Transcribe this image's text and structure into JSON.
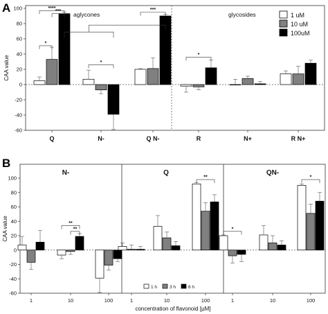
{
  "chart_data": [
    {
      "panel": "A",
      "type": "bar",
      "ylabel": "CAA value",
      "ylim": [
        -60,
        100
      ],
      "yticks": [
        100,
        80,
        60,
        40,
        20,
        0,
        -20,
        -40,
        -60
      ],
      "section_labels": [
        "aglycones",
        "glycosides"
      ],
      "categories": [
        "Q",
        "N-",
        "Q N-",
        "R",
        "N+",
        "R N+"
      ],
      "series": [
        {
          "name": "1 uM",
          "color": "#ffffff",
          "values": [
            5,
            7,
            20,
            -2,
            0,
            14
          ],
          "errors": [
            5,
            12,
            1,
            8,
            7,
            4
          ]
        },
        {
          "name": "10 uM",
          "color": "#808080",
          "values": [
            33,
            -7,
            21,
            -3,
            8,
            14
          ],
          "errors": [
            16,
            5,
            14,
            4,
            3,
            10
          ]
        },
        {
          "name": "100uM",
          "color": "#000000",
          "values": [
            93,
            -39,
            90,
            22,
            1,
            28
          ],
          "errors": [
            2,
            20,
            2,
            10,
            3,
            4
          ]
        }
      ],
      "legend_position": "top-right",
      "significance": [
        {
          "label": "****",
          "cat_a": 0,
          "cat_b": 0,
          "s1": 0,
          "s2": 2,
          "level": 97
        },
        {
          "label": "***",
          "cat_a": 0,
          "cat_b": 0,
          "s1": 1,
          "s2": 2,
          "level": 93
        },
        {
          "label": "*",
          "cat_a": 0,
          "cat_b": 0,
          "s1": 0,
          "s2": 1,
          "level": 51
        },
        {
          "label": "*",
          "cat_a": 1,
          "cat_b": 1,
          "s1": 0,
          "s2": 2,
          "level": 26
        },
        {
          "label": "***",
          "cat_a": 2,
          "cat_b": 2,
          "s1": 0,
          "s2": 2,
          "level": 95
        },
        {
          "label": "*",
          "cat_a": 3,
          "cat_b": 3,
          "s1": 0,
          "s2": 2,
          "level": 36
        }
      ],
      "bracket_Q_Nminus_to_QNminus": {
        "level": 78
      }
    },
    {
      "panel": "B",
      "type": "bar",
      "ylabel": "CAA value",
      "xlabel": "concentration of flavonoid [µM]",
      "ylim": [
        -60,
        100
      ],
      "yticks": [
        100,
        80,
        60,
        40,
        20,
        0,
        -20,
        -40,
        -60
      ],
      "legend_position": "bottom (Q panel)",
      "series_names": [
        "1 h",
        "3 h",
        "6 h"
      ],
      "series_colors": [
        "#ffffff",
        "#808080",
        "#000000"
      ],
      "subpanels": [
        {
          "title": "N-",
          "categories": [
            "1",
            "10",
            "100"
          ],
          "values": [
            [
              7,
              -17,
              11
            ],
            [
              -7,
              -2,
              19
            ],
            [
              -39,
              -21,
              -12
            ]
          ],
          "errors": [
            [
              12,
              10,
              16
            ],
            [
              5,
              4,
              4
            ],
            [
              20,
              7,
              4
            ]
          ],
          "significance": [
            {
              "label": "**",
              "cat": 1,
              "s1": 0,
              "s2": 2,
              "level": 34
            },
            {
              "label": "**",
              "cat": 1,
              "s1": 1,
              "s2": 2,
              "level": 26
            }
          ]
        },
        {
          "title": "Q",
          "categories": [
            "1",
            "10",
            "100"
          ],
          "values": [
            [
              5,
              1,
              1
            ],
            [
              33,
              17,
              6
            ],
            [
              92,
              54,
              67
            ]
          ],
          "errors": [
            [
              5,
              6,
              4
            ],
            [
              15,
              8,
              6
            ],
            [
              2,
              12,
              10
            ]
          ],
          "significance": [
            {
              "label": "**",
              "cat": 2,
              "s1": 0,
              "s2": 2,
              "level": 98
            }
          ]
        },
        {
          "title": "QN-",
          "categories": [
            "1",
            "10",
            "100"
          ],
          "values": [
            [
              20,
              -8,
              -6
            ],
            [
              21,
              10,
              7
            ],
            [
              90,
              51,
              68
            ]
          ],
          "errors": [
            [
              1,
              10,
              10
            ],
            [
              13,
              10,
              6
            ],
            [
              2,
              13,
              12
            ]
          ],
          "significance": [
            {
              "label": "*",
              "cat": 0,
              "s1": 0,
              "s2": 2,
              "level": 26
            },
            {
              "label": "*",
              "cat": 2,
              "s1": 0,
              "s2": 2,
              "level": 98
            }
          ]
        }
      ]
    }
  ],
  "labels": {
    "panel_a": "A",
    "panel_b": "B"
  }
}
